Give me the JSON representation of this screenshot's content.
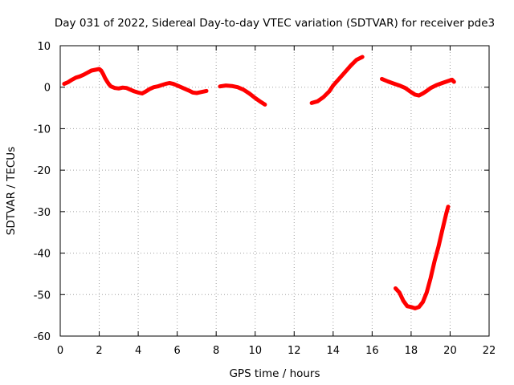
{
  "chart_data": {
    "type": "scatter",
    "title": "Day 031 of 2022, Sidereal Day-to-day VTEC variation (SDTVAR) for receiver pde3",
    "xlabel": "GPS time / hours",
    "ylabel": "SDTVAR / TECUs",
    "xlim": [
      0,
      22
    ],
    "ylim": [
      -60,
      10
    ],
    "x_ticks": [
      "0",
      "2",
      "4",
      "6",
      "8",
      "10",
      "12",
      "14",
      "16",
      "18",
      "20",
      "22"
    ],
    "y_ticks": [
      "10",
      "0",
      "-10",
      "-20",
      "-30",
      "-40",
      "-50",
      "-60"
    ],
    "grid": true,
    "series_color": "#ff0000",
    "series": [
      {
        "name": "segment-1",
        "points": [
          [
            0.2,
            0.8
          ],
          [
            0.4,
            1.2
          ],
          [
            0.6,
            1.8
          ],
          [
            0.8,
            2.3
          ],
          [
            1.0,
            2.6
          ],
          [
            1.2,
            3.0
          ],
          [
            1.4,
            3.5
          ],
          [
            1.6,
            4.0
          ],
          [
            1.8,
            4.2
          ],
          [
            2.0,
            4.4
          ],
          [
            2.1,
            4.0
          ],
          [
            2.2,
            3.2
          ],
          [
            2.3,
            2.2
          ],
          [
            2.4,
            1.4
          ],
          [
            2.5,
            0.7
          ],
          [
            2.6,
            0.2
          ],
          [
            2.8,
            -0.2
          ],
          [
            3.0,
            -0.3
          ],
          [
            3.2,
            -0.1
          ],
          [
            3.4,
            -0.2
          ],
          [
            3.6,
            -0.6
          ],
          [
            3.8,
            -1.0
          ],
          [
            4.0,
            -1.3
          ],
          [
            4.2,
            -1.5
          ],
          [
            4.4,
            -1.0
          ],
          [
            4.6,
            -0.4
          ],
          [
            4.8,
            0.0
          ],
          [
            5.0,
            0.2
          ],
          [
            5.2,
            0.5
          ],
          [
            5.4,
            0.8
          ],
          [
            5.6,
            1.0
          ],
          [
            5.8,
            0.8
          ],
          [
            6.0,
            0.4
          ],
          [
            6.2,
            0.0
          ],
          [
            6.4,
            -0.4
          ],
          [
            6.6,
            -0.8
          ],
          [
            6.8,
            -1.3
          ],
          [
            7.0,
            -1.4
          ],
          [
            7.2,
            -1.2
          ],
          [
            7.4,
            -1.0
          ],
          [
            7.5,
            -0.9
          ]
        ]
      },
      {
        "name": "segment-2",
        "points": [
          [
            8.2,
            0.2
          ],
          [
            8.5,
            0.4
          ],
          [
            8.8,
            0.3
          ],
          [
            9.1,
            0.0
          ],
          [
            9.4,
            -0.6
          ],
          [
            9.7,
            -1.5
          ],
          [
            10.0,
            -2.6
          ],
          [
            10.3,
            -3.6
          ],
          [
            10.5,
            -4.2
          ]
        ]
      },
      {
        "name": "segment-3",
        "points": [
          [
            12.9,
            -3.8
          ],
          [
            13.2,
            -3.4
          ],
          [
            13.5,
            -2.4
          ],
          [
            13.8,
            -1.0
          ],
          [
            14.0,
            0.4
          ],
          [
            14.3,
            2.0
          ],
          [
            14.6,
            3.6
          ],
          [
            14.9,
            5.2
          ],
          [
            15.2,
            6.6
          ],
          [
            15.5,
            7.3
          ]
        ]
      },
      {
        "name": "segment-4",
        "points": [
          [
            16.5,
            2.0
          ],
          [
            16.8,
            1.4
          ],
          [
            17.1,
            0.9
          ],
          [
            17.4,
            0.4
          ],
          [
            17.7,
            -0.2
          ],
          [
            18.0,
            -1.2
          ],
          [
            18.2,
            -1.8
          ],
          [
            18.4,
            -2.0
          ],
          [
            18.6,
            -1.5
          ],
          [
            18.8,
            -0.9
          ],
          [
            19.0,
            -0.2
          ],
          [
            19.3,
            0.5
          ],
          [
            19.6,
            1.0
          ],
          [
            19.9,
            1.5
          ],
          [
            20.1,
            1.8
          ],
          [
            20.2,
            1.3
          ]
        ]
      },
      {
        "name": "segment-5",
        "points": [
          [
            17.2,
            -48.5
          ],
          [
            17.4,
            -49.5
          ],
          [
            17.6,
            -51.5
          ],
          [
            17.8,
            -52.8
          ],
          [
            18.0,
            -53.0
          ],
          [
            18.2,
            -53.3
          ],
          [
            18.4,
            -53.0
          ],
          [
            18.6,
            -51.8
          ],
          [
            18.8,
            -49.5
          ],
          [
            19.0,
            -46.0
          ],
          [
            19.2,
            -42.0
          ],
          [
            19.4,
            -38.5
          ],
          [
            19.6,
            -34.5
          ],
          [
            19.8,
            -30.5
          ],
          [
            19.9,
            -28.8
          ]
        ]
      }
    ]
  }
}
